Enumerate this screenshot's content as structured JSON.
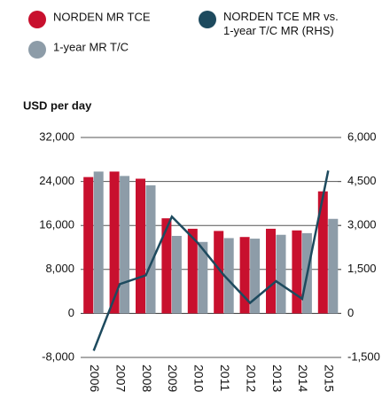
{
  "chart_data": {
    "type": "bar_line",
    "y_axis_label": "USD per day",
    "categories": [
      "2006",
      "2007",
      "2008",
      "2009",
      "2010",
      "2011",
      "2012",
      "2013",
      "2014",
      "2015"
    ],
    "series": [
      {
        "name": "NORDEN MR TCE",
        "color": "#c8102e",
        "type": "bar",
        "values": [
          24800,
          25800,
          24500,
          17300,
          15400,
          15000,
          13900,
          15400,
          15100,
          22200
        ]
      },
      {
        "name": "1-year MR T/C",
        "color": "#8d9ca8",
        "type": "bar",
        "values": [
          25800,
          25000,
          23300,
          14100,
          13000,
          13700,
          13600,
          14300,
          14600,
          17200
        ]
      },
      {
        "name": "NORDEN TCE MR vs. 1-year T/C MR (RHS)",
        "color": "#1d4a5e",
        "type": "line",
        "axis": "y2",
        "values": [
          -1270,
          1000,
          1300,
          3300,
          2400,
          1300,
          360,
          1100,
          500,
          4870
        ]
      }
    ],
    "ylim": [
      -8000,
      32000
    ],
    "yticks": [
      {
        "value": -8000,
        "label": "-8,000"
      },
      0,
      {
        "value": 8000,
        "label": "8,000"
      },
      {
        "value": 16000,
        "label": "16,000"
      },
      {
        "value": 24000,
        "label": "24,000"
      },
      {
        "value": 32000,
        "label": "32,000"
      }
    ],
    "y2lim": [
      -1500,
      6000
    ],
    "y2ticks": [
      {
        "value": -1500,
        "label": "-1,500"
      },
      0,
      {
        "value": 1500,
        "label": "1,500"
      },
      {
        "value": 3000,
        "label": "3,000"
      },
      {
        "value": 4500,
        "label": "4,500"
      },
      {
        "value": 6000,
        "label": "6,000"
      }
    ],
    "grid": true
  }
}
